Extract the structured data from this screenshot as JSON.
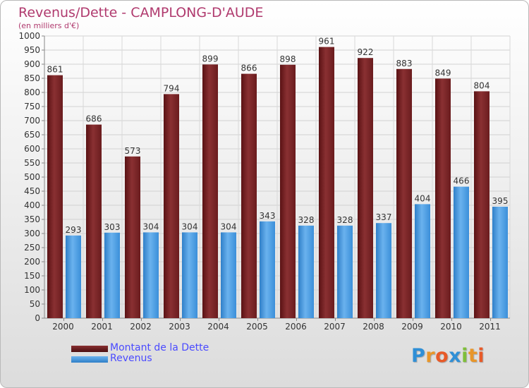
{
  "title": "Revenus/Dette - CAMPLONG-D'AUDE",
  "subtitle": "(en milliers d'€)",
  "logo": {
    "text": "Proxiti",
    "letters": [
      "P",
      "r",
      "o",
      "x",
      "i",
      "t",
      "i"
    ],
    "colors": [
      "#2f8fd6",
      "#e8962a",
      "#e85a28",
      "#2f8fd6",
      "#7fbf3a",
      "#e8962a",
      "#e85a28"
    ]
  },
  "colors": {
    "debt": "#7a2526",
    "debt_light": "#a33f3f",
    "revenue": "#4a9ee6",
    "revenue_light": "#6fb6f0"
  },
  "chart_data": {
    "type": "bar",
    "title": "Revenus/Dette - CAMPLONG-D'AUDE",
    "ylabel": "(en milliers d'€)",
    "xlabel": "",
    "ylim": [
      0,
      1000
    ],
    "yticks": [
      0,
      50,
      100,
      150,
      200,
      250,
      300,
      350,
      400,
      450,
      500,
      550,
      600,
      650,
      700,
      750,
      800,
      850,
      900,
      950,
      1000
    ],
    "grid": true,
    "legend": "bottom-left",
    "categories": [
      "2000",
      "2001",
      "2002",
      "2003",
      "2004",
      "2005",
      "2006",
      "2007",
      "2008",
      "2009",
      "2010",
      "2011"
    ],
    "series": [
      {
        "name": "Montant de la Dette",
        "values": [
          861,
          686,
          573,
          794,
          899,
          866,
          898,
          961,
          922,
          883,
          849,
          804
        ]
      },
      {
        "name": "Revenus",
        "values": [
          293,
          303,
          304,
          304,
          304,
          343,
          328,
          328,
          337,
          404,
          466,
          395
        ]
      }
    ]
  }
}
